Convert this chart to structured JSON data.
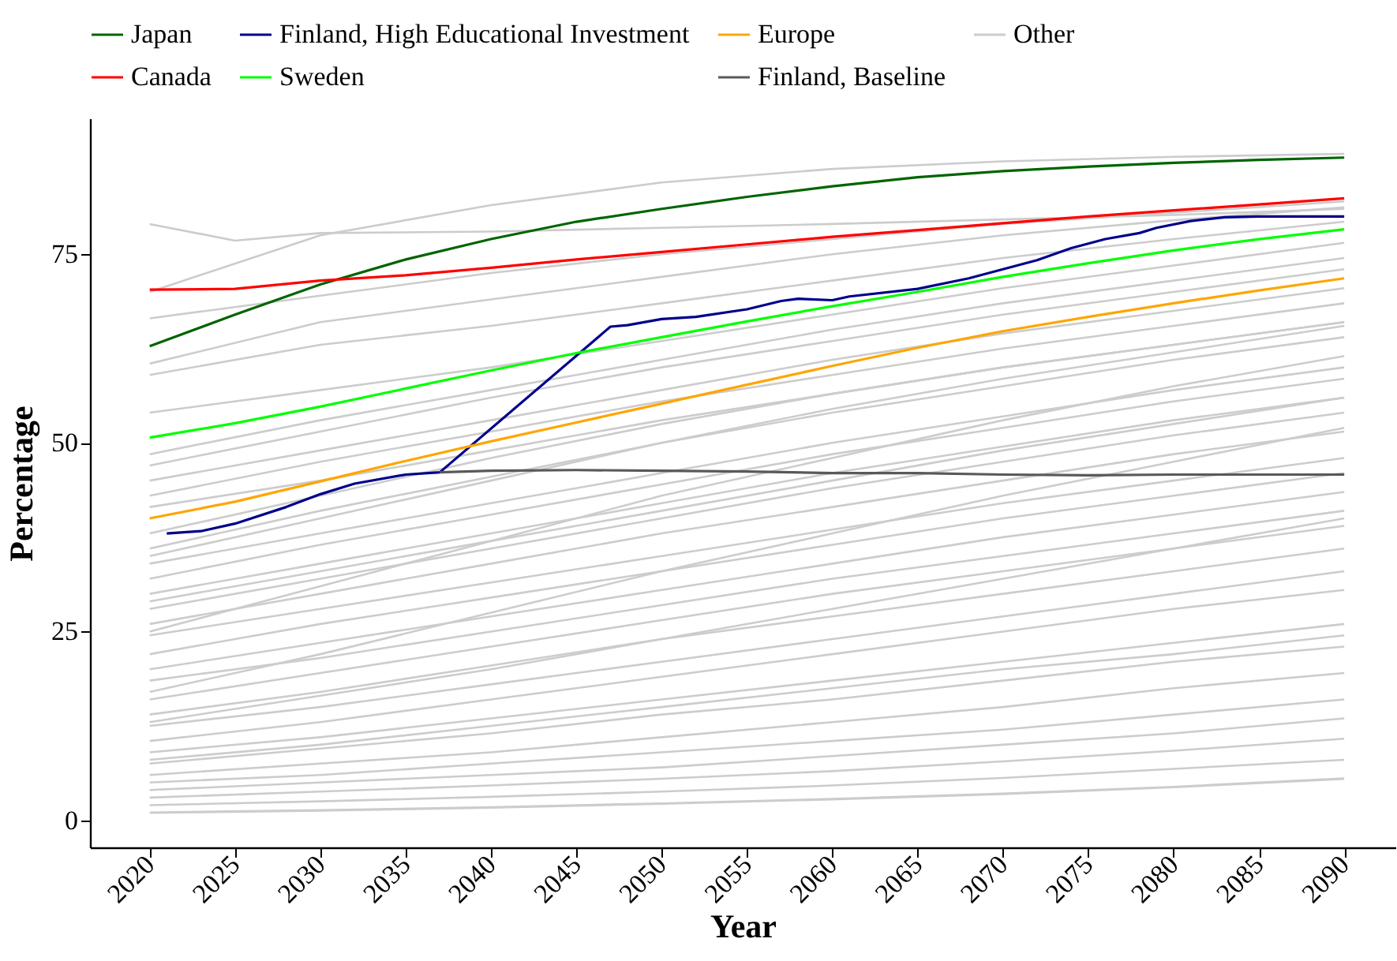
{
  "chart_data": {
    "type": "line",
    "xlabel": "Year",
    "ylabel": "Percentage",
    "x": [
      2020,
      2025,
      2030,
      2035,
      2040,
      2045,
      2050,
      2055,
      2060,
      2065,
      2070,
      2075,
      2080,
      2085,
      2090
    ],
    "xlim": [
      2016.5,
      2093
    ],
    "xticks": [
      2020,
      2025,
      2030,
      2035,
      2040,
      2045,
      2050,
      2055,
      2060,
      2065,
      2070,
      2075,
      2080,
      2085,
      2090
    ],
    "ylim": [
      -3.6,
      93
    ],
    "yticks": [
      0,
      25,
      50,
      75
    ],
    "grid": false,
    "legend": "top",
    "line_style": "solid",
    "marker": "none",
    "series": [
      {
        "color": "#cccccc",
        "x": [
          2020,
          2030,
          2040,
          2050,
          2060,
          2070,
          2080,
          2090
        ],
        "values": [
          70,
          77.5,
          81.5,
          84.5,
          86.3,
          87.3,
          87.9,
          88.3
        ]
      },
      {
        "color": "#cccccc",
        "x": [
          2020,
          2025,
          2030,
          2040,
          2050,
          2060,
          2070,
          2080,
          2090
        ],
        "values": [
          79,
          76.8,
          77.8,
          78,
          78.5,
          79,
          79.6,
          80.2,
          81
        ]
      },
      {
        "color": "#cccccc",
        "x": [
          2020,
          2030,
          2040,
          2050,
          2060,
          2070,
          2080,
          2090
        ],
        "values": [
          66.5,
          69.5,
          72.5,
          75,
          77,
          79,
          80.5,
          82
        ]
      },
      {
        "color": "#cccccc",
        "x": [
          2020,
          2030,
          2040,
          2050,
          2060,
          2070,
          2080,
          2090
        ],
        "values": [
          60.5,
          66,
          69,
          72,
          75,
          77.5,
          79.5,
          81.2
        ]
      },
      {
        "color": "#cccccc",
        "x": [
          2020,
          2030,
          2040,
          2050,
          2060,
          2070,
          2080,
          2090
        ],
        "values": [
          59,
          63,
          65.5,
          68.5,
          71.5,
          74.5,
          77,
          79.3
        ]
      },
      {
        "color": "#cccccc",
        "x": [
          2020,
          2030,
          2040,
          2050,
          2060,
          2070,
          2080,
          2090
        ],
        "values": [
          54,
          57,
          60,
          63.5,
          67,
          70.5,
          73.5,
          76.5
        ]
      },
      {
        "color": "#cccccc",
        "x": [
          2020,
          2030,
          2040,
          2050,
          2060,
          2070,
          2080,
          2090
        ],
        "values": [
          48.5,
          53,
          57,
          61,
          65,
          68.5,
          71.5,
          74.5
        ]
      },
      {
        "color": "#cccccc",
        "x": [
          2020,
          2030,
          2040,
          2050,
          2060,
          2070,
          2080,
          2090
        ],
        "values": [
          47,
          51.5,
          56,
          60,
          63.5,
          67,
          70,
          73
        ]
      },
      {
        "color": "#cccccc",
        "x": [
          2020,
          2030,
          2040,
          2050,
          2060,
          2070,
          2080,
          2090
        ],
        "values": [
          45,
          49,
          53,
          57,
          61,
          64.5,
          67.5,
          70.5
        ]
      },
      {
        "color": "#cccccc",
        "x": [
          2020,
          2030,
          2040,
          2050,
          2060,
          2070,
          2080,
          2090
        ],
        "values": [
          43,
          47.5,
          51.5,
          55.5,
          59,
          62.5,
          65.5,
          68.5
        ]
      },
      {
        "color": "#cccccc",
        "x": [
          2020,
          2030,
          2040,
          2050,
          2060,
          2070,
          2080,
          2090
        ],
        "values": [
          41.5,
          45,
          49,
          53,
          56.5,
          60,
          63,
          66
        ]
      },
      {
        "color": "#cccccc",
        "x": [
          2020,
          2030,
          2040,
          2050,
          2060,
          2070,
          2080,
          2090
        ],
        "values": [
          38,
          43,
          48,
          52.5,
          56.5,
          60,
          63,
          66
        ]
      },
      {
        "color": "#cccccc",
        "x": [
          2020,
          2030,
          2040,
          2050,
          2060,
          2070,
          2080,
          2090
        ],
        "values": [
          36,
          41,
          45.5,
          50,
          54,
          57.5,
          61,
          64
        ]
      },
      {
        "color": "#cccccc",
        "x": [
          2020,
          2030,
          2040,
          2050,
          2060,
          2070,
          2080,
          2090
        ],
        "values": [
          35,
          40,
          45,
          50,
          54.5,
          58.5,
          62,
          65.5
        ]
      },
      {
        "color": "#cccccc",
        "x": [
          2020,
          2030,
          2040,
          2050,
          2060,
          2070,
          2080,
          2090
        ],
        "values": [
          34,
          38,
          42,
          46,
          50,
          53.5,
          57,
          60
        ]
      },
      {
        "color": "#cccccc",
        "x": [
          2020,
          2030,
          2040,
          2050,
          2060,
          2070,
          2080,
          2090
        ],
        "values": [
          32,
          36.5,
          40.5,
          44.5,
          48.5,
          52,
          55.5,
          58.5
        ]
      },
      {
        "color": "#cccccc",
        "x": [
          2020,
          2030,
          2040,
          2050,
          2060,
          2070,
          2080,
          2090
        ],
        "values": [
          30,
          34,
          38,
          42,
          46,
          49.5,
          53,
          56
        ]
      },
      {
        "color": "#cccccc",
        "x": [
          2020,
          2030,
          2040,
          2050,
          2060,
          2070,
          2080,
          2090
        ],
        "values": [
          29,
          33,
          37,
          41,
          45,
          49,
          52.5,
          56
        ]
      },
      {
        "color": "#cccccc",
        "x": [
          2020,
          2030,
          2040,
          2050,
          2060,
          2070,
          2080,
          2090
        ],
        "values": [
          28,
          32,
          36,
          40,
          44,
          47.5,
          51,
          54
        ]
      },
      {
        "color": "#cccccc",
        "x": [
          2020,
          2030,
          2040,
          2050,
          2060,
          2070,
          2080,
          2090
        ],
        "values": [
          26,
          30,
          34,
          38,
          41.5,
          45,
          48.5,
          51.5
        ]
      },
      {
        "color": "#cccccc",
        "x": [
          2020,
          2030,
          2040,
          2050,
          2060,
          2070,
          2080,
          2090
        ],
        "values": [
          25,
          31,
          37,
          43,
          48,
          53,
          57.5,
          61.5
        ]
      },
      {
        "color": "#cccccc",
        "x": [
          2020,
          2030,
          2040,
          2050,
          2060,
          2070,
          2080,
          2090
        ],
        "values": [
          24.5,
          28,
          31.5,
          35,
          38.5,
          42,
          45,
          48
        ]
      },
      {
        "color": "#cccccc",
        "x": [
          2020,
          2030,
          2040,
          2050,
          2060,
          2070,
          2080,
          2090
        ],
        "values": [
          22,
          26,
          29.5,
          33,
          36.5,
          40,
          43,
          46
        ]
      },
      {
        "color": "#cccccc",
        "x": [
          2020,
          2030,
          2040,
          2050,
          2060,
          2070,
          2080,
          2090
        ],
        "values": [
          20,
          23.5,
          27,
          30.5,
          34,
          37.5,
          40.5,
          43.5
        ]
      },
      {
        "color": "#cccccc",
        "x": [
          2020,
          2030,
          2040,
          2050,
          2060,
          2070,
          2080,
          2090
        ],
        "values": [
          18.5,
          21.5,
          25,
          28.5,
          32,
          35,
          38,
          41
        ]
      },
      {
        "color": "#cccccc",
        "x": [
          2020,
          2030,
          2040,
          2050,
          2060,
          2070,
          2080,
          2090
        ],
        "values": [
          17,
          22,
          27.5,
          33,
          38,
          43,
          47.5,
          52
        ]
      },
      {
        "color": "#cccccc",
        "x": [
          2020,
          2030,
          2040,
          2050,
          2060,
          2070,
          2080,
          2090
        ],
        "values": [
          16,
          19.5,
          23,
          26.5,
          30,
          33,
          36,
          39
        ]
      },
      {
        "color": "#cccccc",
        "x": [
          2020,
          2030,
          2040,
          2050,
          2060,
          2070,
          2080,
          2090
        ],
        "values": [
          14,
          17,
          20.5,
          24,
          27,
          30,
          33,
          36
        ]
      },
      {
        "color": "#cccccc",
        "x": [
          2020,
          2030,
          2040,
          2050,
          2060,
          2070,
          2080,
          2090
        ],
        "values": [
          13,
          16.5,
          20,
          24,
          28,
          32,
          36,
          40
        ]
      },
      {
        "color": "#cccccc",
        "x": [
          2020,
          2030,
          2040,
          2050,
          2060,
          2070,
          2080,
          2090
        ],
        "values": [
          12.5,
          15,
          18,
          21,
          24,
          27,
          30,
          33
        ]
      },
      {
        "color": "#cccccc",
        "x": [
          2020,
          2030,
          2040,
          2050,
          2060,
          2070,
          2080,
          2090
        ],
        "values": [
          10.5,
          13,
          16,
          19,
          22,
          25,
          28,
          30.5
        ]
      },
      {
        "color": "#cccccc",
        "x": [
          2020,
          2030,
          2040,
          2050,
          2060,
          2070,
          2080,
          2090
        ],
        "values": [
          9,
          11,
          13.5,
          16,
          18.5,
          21,
          23.5,
          26
        ]
      },
      {
        "color": "#cccccc",
        "x": [
          2020,
          2030,
          2040,
          2050,
          2060,
          2070,
          2080,
          2090
        ],
        "values": [
          8,
          10,
          12.5,
          15,
          17.5,
          20,
          22,
          24.5
        ]
      },
      {
        "color": "#cccccc",
        "x": [
          2020,
          2030,
          2040,
          2050,
          2060,
          2070,
          2080,
          2090
        ],
        "values": [
          7.5,
          9.5,
          11.5,
          14,
          16,
          18.5,
          21,
          23
        ]
      },
      {
        "color": "#cccccc",
        "x": [
          2020,
          2030,
          2040,
          2050,
          2060,
          2070,
          2080,
          2090
        ],
        "values": [
          6,
          7.5,
          9,
          11,
          13,
          15,
          17.5,
          19.5
        ]
      },
      {
        "color": "#cccccc",
        "x": [
          2020,
          2030,
          2040,
          2050,
          2060,
          2070,
          2080,
          2090
        ],
        "values": [
          5,
          6,
          7.5,
          9,
          10.5,
          12,
          14,
          16
        ]
      },
      {
        "color": "#cccccc",
        "x": [
          2020,
          2030,
          2040,
          2050,
          2060,
          2070,
          2080,
          2090
        ],
        "values": [
          4,
          5,
          6,
          7,
          8.5,
          10,
          11.5,
          13.5
        ]
      },
      {
        "color": "#cccccc",
        "x": [
          2020,
          2030,
          2040,
          2050,
          2060,
          2070,
          2080,
          2090
        ],
        "values": [
          3,
          3.8,
          4.6,
          5.5,
          6.5,
          7.8,
          9.2,
          10.8
        ]
      },
      {
        "color": "#cccccc",
        "x": [
          2020,
          2030,
          2040,
          2050,
          2060,
          2070,
          2080,
          2090
        ],
        "values": [
          2,
          2.5,
          3.1,
          3.8,
          4.6,
          5.6,
          6.8,
          8
        ]
      },
      {
        "name": "Japan",
        "color": "#006400",
        "values": [
          62.8,
          67,
          71,
          74.3,
          77,
          79.3,
          81,
          82.6,
          84,
          85.2,
          86,
          86.6,
          87.1,
          87.5,
          87.8
        ]
      },
      {
        "name": "Finland, High Educational Investment",
        "color": "#00008b",
        "x": [
          2021,
          2023,
          2025,
          2028,
          2030,
          2032,
          2035,
          2037,
          2047,
          2048,
          2050,
          2052,
          2055,
          2057,
          2058,
          2060,
          2061,
          2065,
          2068,
          2070,
          2072,
          2074,
          2076,
          2078,
          2079,
          2081,
          2083,
          2085,
          2090
        ],
        "values": [
          38,
          38.3,
          39.3,
          41.5,
          43.2,
          44.6,
          45.8,
          46.1,
          65.4,
          65.6,
          66.4,
          66.7,
          67.7,
          68.8,
          69.1,
          68.9,
          69.4,
          70.4,
          71.8,
          73,
          74.2,
          75.8,
          77,
          77.8,
          78.5,
          79.4,
          79.9,
          80,
          80
        ]
      },
      {
        "name": "Europe",
        "color": "#ffa500",
        "values": [
          40,
          42.2,
          44.9,
          47.6,
          50.2,
          52.7,
          55.2,
          57.7,
          60.2,
          62.6,
          64.8,
          66.7,
          68.5,
          70.2,
          71.8
        ]
      },
      {
        "name": "Other",
        "color": "#cccccc",
        "x": [
          2020,
          2030,
          2040,
          2050,
          2060,
          2070,
          2080,
          2090
        ],
        "values": [
          1,
          1.3,
          1.7,
          2.2,
          2.8,
          3.5,
          4.4,
          5.5
        ]
      },
      {
        "name": "Canada",
        "color": "#ff0000",
        "values": [
          70.3,
          70.4,
          71.5,
          72.2,
          73.2,
          74.3,
          75.3,
          76.3,
          77.3,
          78.2,
          79.1,
          80,
          80.8,
          81.6,
          82.4
        ]
      },
      {
        "name": "Sweden",
        "color": "#00ff00",
        "values": [
          50.7,
          52.6,
          54.8,
          57.2,
          59.6,
          61.9,
          64,
          66.1,
          68.1,
          70,
          72,
          73.8,
          75.5,
          77,
          78.3
        ]
      },
      {
        "name": "Finland, Baseline",
        "color": "#595959",
        "x": [
          2037,
          2040,
          2045,
          2050,
          2055,
          2060,
          2065,
          2070,
          2075,
          2080,
          2085,
          2090
        ],
        "values": [
          46.1,
          46.3,
          46.4,
          46.3,
          46.2,
          46,
          46,
          45.8,
          45.7,
          45.8,
          45.8,
          45.8
        ]
      }
    ]
  }
}
